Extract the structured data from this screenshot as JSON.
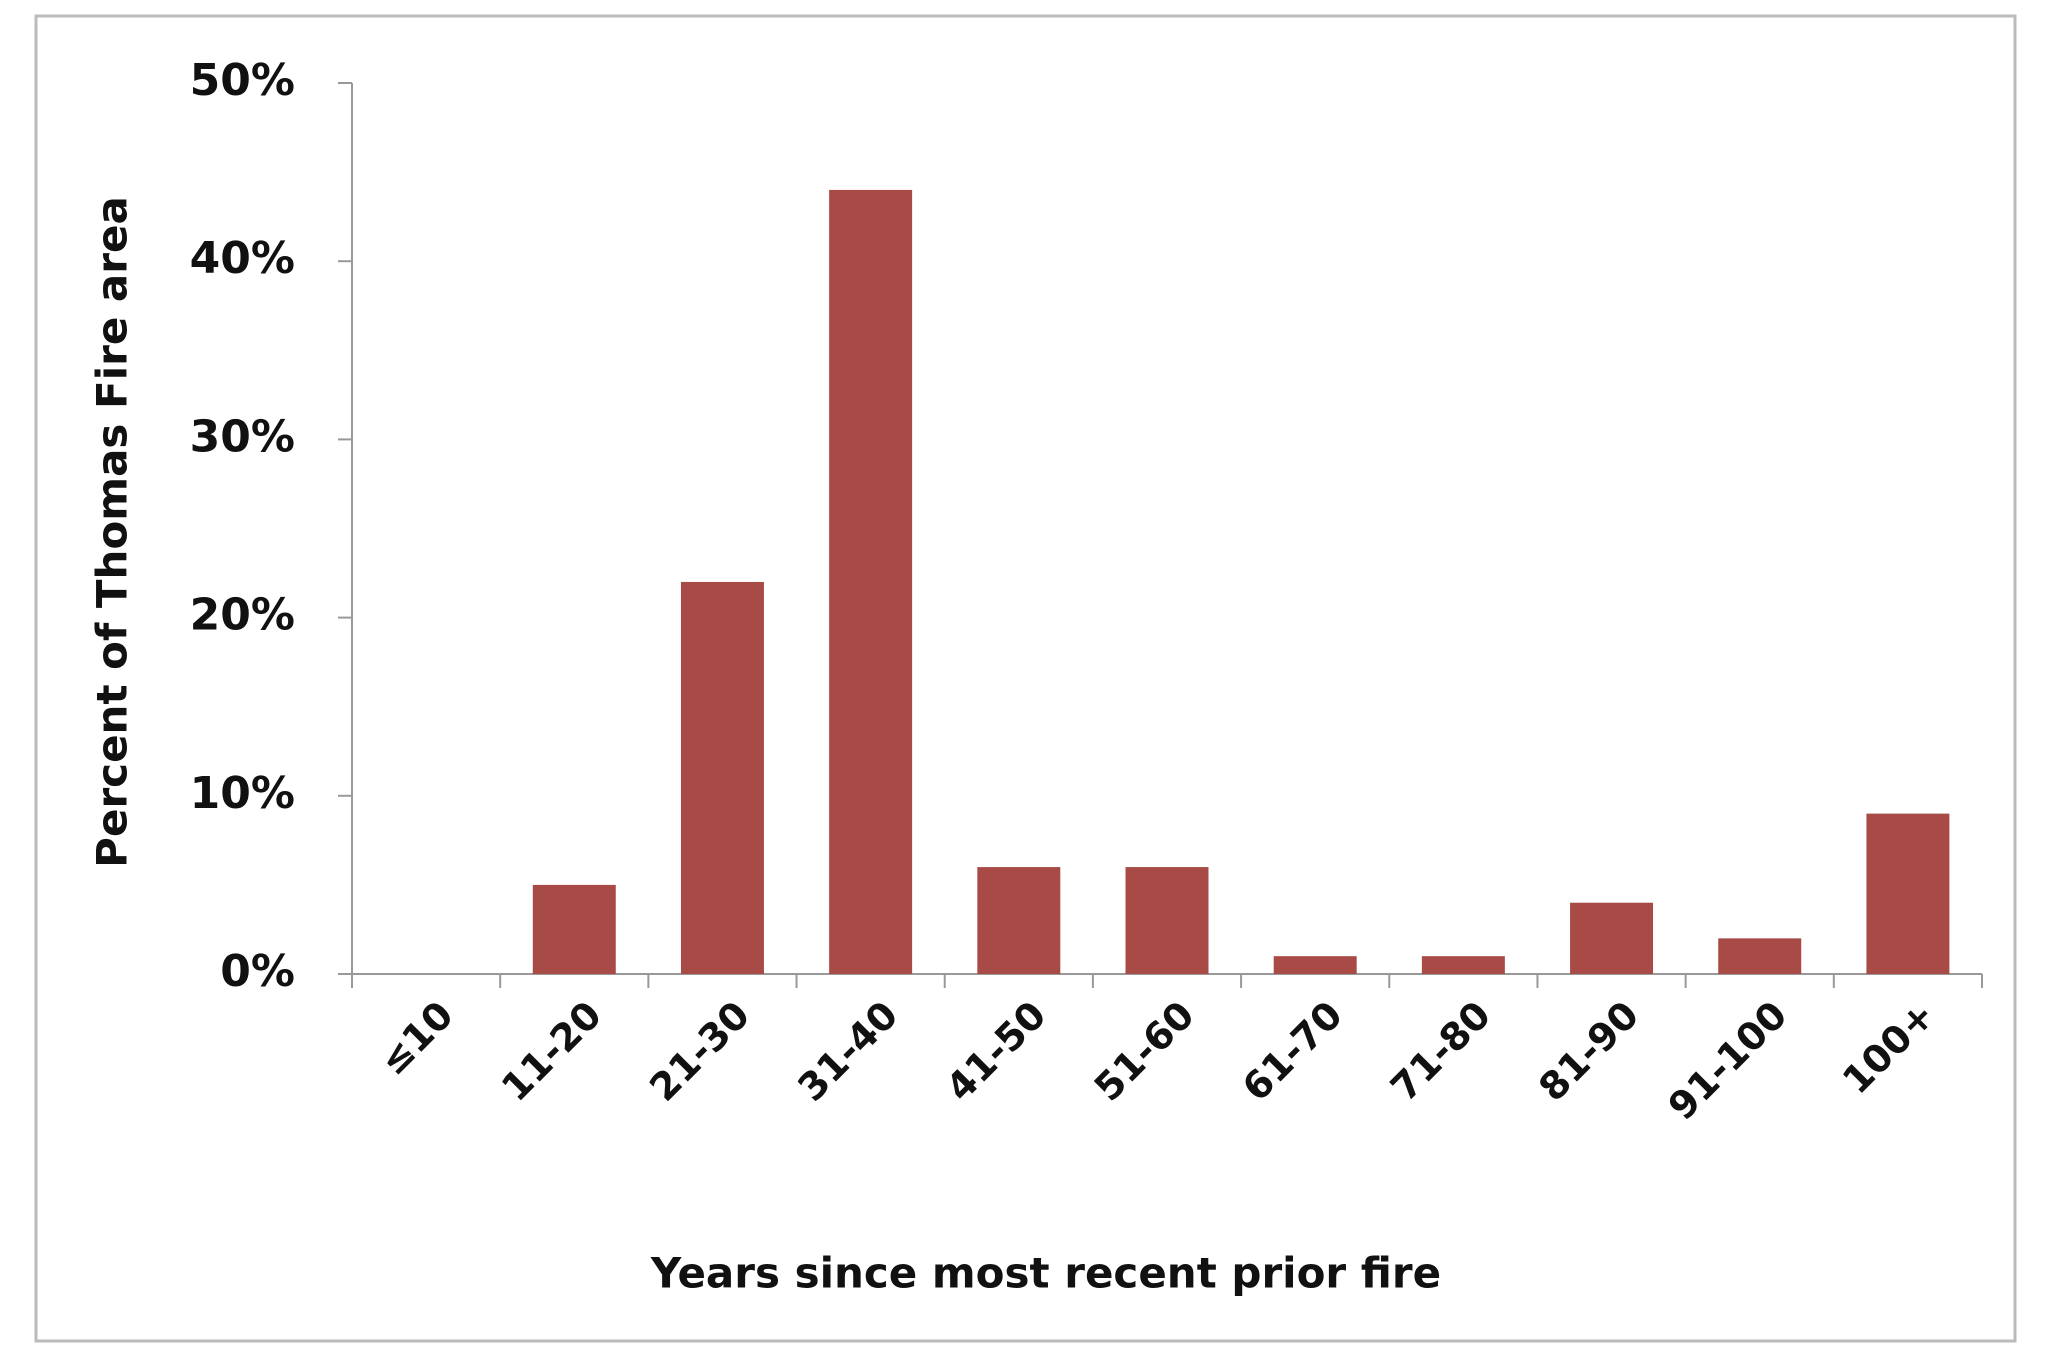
{
  "chart_data": {
    "type": "bar",
    "xlabel": "Years since most recent prior fire",
    "ylabel": "Percent of Thomas Fire area",
    "categories": [
      "≤10",
      "11-20",
      "21-30",
      "31-40",
      "41-50",
      "51-60",
      "61-70",
      "71-80",
      "81-90",
      "91-100",
      "100+"
    ],
    "values": [
      0,
      5,
      22,
      44,
      6,
      6,
      1,
      1,
      4,
      2,
      9
    ],
    "color": "#a84a45",
    "ylim": [
      0,
      50
    ],
    "yticks": [
      {
        "value": 0,
        "label": "0%"
      },
      {
        "value": 10,
        "label": "10%"
      },
      {
        "value": 20,
        "label": "20%"
      },
      {
        "value": 30,
        "label": "30%"
      },
      {
        "value": 40,
        "label": "40%"
      },
      {
        "value": 50,
        "label": "50%"
      }
    ],
    "grid": false
  }
}
